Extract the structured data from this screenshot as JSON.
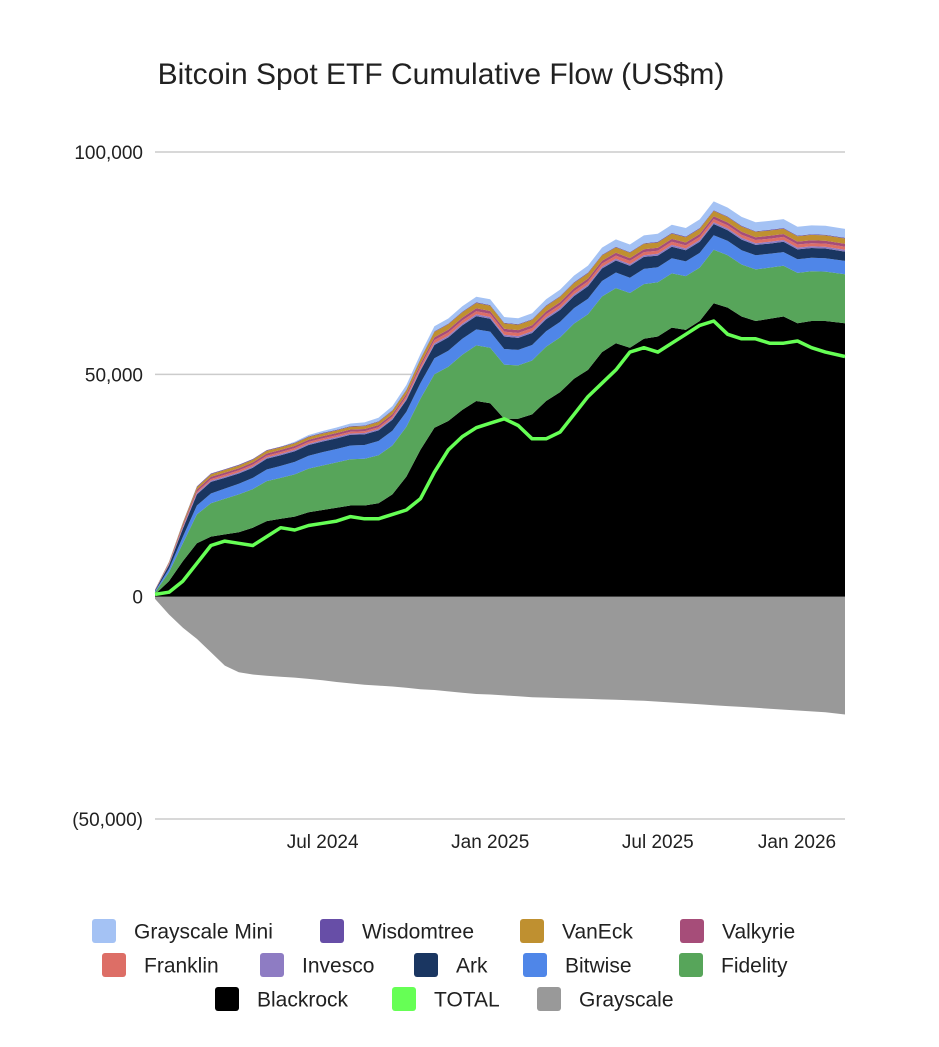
{
  "chart_data": {
    "type": "area",
    "title": "Bitcoin Spot ETF Cumulative Flow (US$m)",
    "xlabel": "",
    "ylabel": "",
    "ylim": [
      -50000,
      100000
    ],
    "y_ticks": [
      {
        "value": 100000,
        "label": "100,000"
      },
      {
        "value": 50000,
        "label": "50,000"
      },
      {
        "value": 0,
        "label": "0"
      },
      {
        "value": -50000,
        "label": "(50,000)"
      }
    ],
    "x_range": [
      0,
      24.7
    ],
    "x_ticks": [
      {
        "value": 6,
        "label": "Jul 2024"
      },
      {
        "value": 12,
        "label": "Jan 2025"
      },
      {
        "value": 18,
        "label": "Jul 2025"
      },
      {
        "value": 24,
        "label": "Jan 2026"
      }
    ],
    "x": [
      0,
      0.5,
      1,
      1.5,
      2,
      2.5,
      3,
      3.5,
      4,
      4.5,
      5,
      5.5,
      6,
      6.5,
      7,
      7.5,
      8,
      8.5,
      9,
      9.5,
      10,
      10.5,
      11,
      11.5,
      12,
      12.5,
      13,
      13.5,
      14,
      14.5,
      15,
      15.5,
      16,
      16.5,
      17,
      17.5,
      18,
      18.5,
      19,
      19.5,
      20,
      20.5,
      21,
      21.5,
      22,
      22.5,
      23,
      23.5,
      24,
      24.7
    ],
    "stacking": "Positive series stacked upward from 0 (bottom to top: Blackrock, Fidelity, Bitwise, Ark, Invesco, Franklin, Valkyrie, VanEck, Wisdomtree, Grayscale Mini). Grayscale stacked downward. TOTAL drawn as a line.",
    "series": [
      {
        "name": "Blackrock",
        "color": "#000000",
        "values": [
          500,
          3500,
          8000,
          12000,
          13500,
          14000,
          14500,
          15500,
          17000,
          17500,
          18000,
          19000,
          19500,
          20000,
          20500,
          20500,
          21000,
          23000,
          27000,
          33000,
          38000,
          39500,
          42000,
          44000,
          43500,
          40000,
          40000,
          41000,
          44000,
          46000,
          49000,
          51000,
          55000,
          57000,
          56000,
          58000,
          58500,
          60500,
          60000,
          62000,
          66000,
          65000,
          63000,
          62000,
          62500,
          63000,
          61500,
          62000,
          62000,
          61500
        ]
      },
      {
        "name": "Fidelity",
        "color": "#57a55a",
        "values": [
          500,
          2000,
          4000,
          6500,
          7500,
          8000,
          8500,
          8700,
          9000,
          9200,
          9500,
          9800,
          10000,
          10200,
          10400,
          10500,
          10800,
          11000,
          11200,
          11500,
          12000,
          12200,
          12400,
          12500,
          12500,
          12200,
          12000,
          12100,
          12200,
          12300,
          12400,
          12500,
          12500,
          12400,
          12300,
          12300,
          12200,
          12200,
          12100,
          12000,
          12000,
          11800,
          11700,
          11600,
          11500,
          11400,
          11300,
          11200,
          11100,
          11000
        ]
      },
      {
        "name": "Bitwise",
        "color": "#4f86e8",
        "values": [
          200,
          800,
          1500,
          2000,
          2200,
          2300,
          2400,
          2500,
          2600,
          2700,
          2800,
          2900,
          3000,
          3000,
          3100,
          3100,
          3200,
          3300,
          3400,
          3500,
          3600,
          3600,
          3600,
          3600,
          3600,
          3500,
          3500,
          3500,
          3500,
          3500,
          3500,
          3500,
          3500,
          3500,
          3400,
          3400,
          3400,
          3400,
          3300,
          3300,
          3300,
          3200,
          3200,
          3200,
          3100,
          3100,
          3100,
          3000,
          3000,
          3000
        ]
      },
      {
        "name": "Ark",
        "color": "#1a3661",
        "values": [
          200,
          800,
          1800,
          2500,
          2600,
          2400,
          2300,
          2300,
          2400,
          2400,
          2400,
          2400,
          2400,
          2400,
          2400,
          2400,
          2400,
          2500,
          2600,
          2800,
          3000,
          3000,
          3000,
          3000,
          2900,
          2800,
          2700,
          2700,
          2700,
          2700,
          2700,
          2800,
          2800,
          2700,
          2700,
          2700,
          2600,
          2600,
          2500,
          2500,
          2500,
          2400,
          2400,
          2300,
          2300,
          2300,
          2200,
          2200,
          2200,
          2100
        ]
      },
      {
        "name": "Invesco",
        "color": "#8e7cc3",
        "values": [
          50,
          150,
          250,
          300,
          300,
          300,
          300,
          300,
          300,
          300,
          300,
          300,
          300,
          300,
          300,
          300,
          300,
          300,
          350,
          350,
          400,
          400,
          400,
          400,
          400,
          400,
          400,
          400,
          400,
          400,
          400,
          400,
          400,
          400,
          400,
          400,
          400,
          400,
          400,
          400,
          400,
          400,
          400,
          400,
          400,
          400,
          400,
          400,
          400,
          400
        ]
      },
      {
        "name": "Franklin",
        "color": "#dd6e66",
        "values": [
          50,
          150,
          250,
          300,
          350,
          400,
          400,
          400,
          400,
          400,
          400,
          400,
          400,
          400,
          400,
          400,
          400,
          450,
          500,
          600,
          700,
          700,
          700,
          700,
          700,
          700,
          700,
          700,
          700,
          700,
          700,
          700,
          700,
          700,
          700,
          700,
          700,
          700,
          700,
          700,
          700,
          700,
          700,
          700,
          700,
          700,
          700,
          700,
          700,
          700
        ]
      },
      {
        "name": "Valkyrie",
        "color": "#a64d79",
        "values": [
          50,
          200,
          400,
          500,
          500,
          500,
          500,
          500,
          500,
          500,
          500,
          500,
          500,
          500,
          500,
          500,
          500,
          500,
          550,
          600,
          650,
          650,
          650,
          650,
          650,
          650,
          650,
          650,
          650,
          650,
          650,
          650,
          650,
          650,
          650,
          650,
          650,
          650,
          650,
          650,
          650,
          650,
          650,
          650,
          650,
          650,
          650,
          650,
          650,
          650
        ]
      },
      {
        "name": "VanEck",
        "color": "#bf9030",
        "values": [
          50,
          200,
          400,
          550,
          600,
          600,
          600,
          600,
          600,
          600,
          600,
          600,
          600,
          600,
          600,
          650,
          700,
          750,
          850,
          1000,
          1200,
          1200,
          1200,
          1200,
          1200,
          1200,
          1200,
          1200,
          1200,
          1200,
          1200,
          1200,
          1200,
          1200,
          1200,
          1200,
          1200,
          1200,
          1200,
          1200,
          1200,
          1200,
          1200,
          1200,
          1200,
          1200,
          1200,
          1200,
          1200,
          1200
        ]
      },
      {
        "name": "Wisdomtree",
        "color": "#674ea7",
        "values": [
          20,
          50,
          100,
          150,
          150,
          150,
          150,
          150,
          150,
          150,
          150,
          150,
          150,
          150,
          150,
          150,
          150,
          150,
          150,
          150,
          150,
          150,
          150,
          150,
          150,
          150,
          150,
          150,
          150,
          150,
          150,
          150,
          150,
          150,
          150,
          150,
          150,
          150,
          150,
          150,
          150,
          150,
          150,
          150,
          150,
          150,
          150,
          150,
          150,
          150
        ]
      },
      {
        "name": "Grayscale Mini",
        "color": "#a4c2f4",
        "values": [
          0,
          0,
          0,
          0,
          0,
          0,
          0,
          0,
          0,
          0,
          200,
          300,
          400,
          500,
          600,
          700,
          800,
          900,
          1000,
          1050,
          1100,
          1150,
          1200,
          1250,
          1300,
          1300,
          1300,
          1350,
          1400,
          1450,
          1500,
          1550,
          1600,
          1650,
          1700,
          1750,
          1800,
          1850,
          1900,
          1950,
          2000,
          2000,
          2000,
          2000,
          2000,
          2000,
          2000,
          2000,
          2000,
          2000
        ]
      },
      {
        "name": "Grayscale",
        "color": "#999999",
        "values": [
          -500,
          -4000,
          -7000,
          -9500,
          -12500,
          -15500,
          -17000,
          -17500,
          -17800,
          -18000,
          -18200,
          -18500,
          -18800,
          -19200,
          -19500,
          -19800,
          -20000,
          -20200,
          -20500,
          -20800,
          -21000,
          -21300,
          -21600,
          -21900,
          -22000,
          -22200,
          -22400,
          -22600,
          -22700,
          -22800,
          -22900,
          -23000,
          -23100,
          -23200,
          -23300,
          -23400,
          -23600,
          -23800,
          -24000,
          -24200,
          -24400,
          -24600,
          -24800,
          -25000,
          -25200,
          -25400,
          -25600,
          -25800,
          -26000,
          -26500
        ]
      },
      {
        "name": "TOTAL",
        "color": "#66ff55",
        "values": [
          500,
          1000,
          3500,
          7500,
          11500,
          12500,
          12000,
          11500,
          13500,
          15500,
          15000,
          16000,
          16500,
          17000,
          18000,
          17500,
          17500,
          18500,
          19500,
          22000,
          28000,
          33000,
          36000,
          38000,
          39000,
          40000,
          38500,
          35500,
          35500,
          37000,
          41000,
          45000,
          48000,
          51000,
          55000,
          56000,
          55000,
          57000,
          59000,
          61000,
          62000,
          59000,
          58000,
          58000,
          57000,
          57000,
          57500,
          56000,
          55000,
          54000
        ]
      }
    ],
    "legend": {
      "placement": "bottom",
      "rows": [
        [
          "Grayscale Mini",
          "Wisdomtree",
          "VanEck",
          "Valkyrie"
        ],
        [
          "Franklin",
          "Invesco",
          "Ark",
          "Bitwise",
          "Fidelity"
        ],
        [
          "Blackrock",
          "TOTAL",
          "Grayscale"
        ]
      ]
    },
    "grid": true
  }
}
